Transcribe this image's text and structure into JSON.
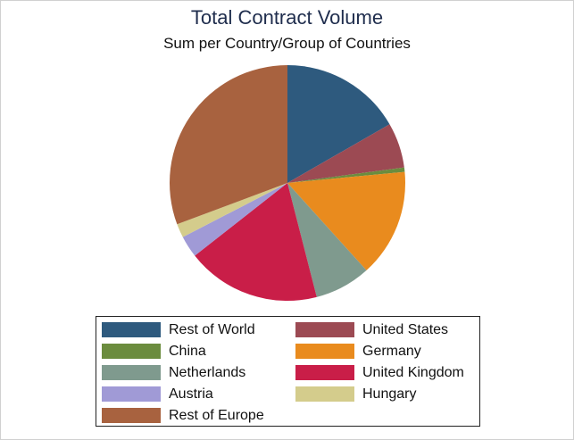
{
  "chart_data": {
    "type": "pie",
    "title": "Total Contract Volume",
    "subtitle": "Sum per Country/Group of Countries",
    "categories": [
      "Rest of World",
      "United States",
      "China",
      "Germany",
      "Netherlands",
      "United Kingdom",
      "Austria",
      "Hungary",
      "Rest of Europe"
    ],
    "values": [
      16.7,
      6.2,
      0.6,
      14.8,
      7.7,
      18.4,
      3.0,
      1.9,
      30.7
    ],
    "colors": [
      "#2e5a7e",
      "#9c4a53",
      "#6b8c3e",
      "#e98b1e",
      "#7f9a8e",
      "#c91e48",
      "#a09ad6",
      "#d4cc8c",
      "#a8623f"
    ],
    "start": "12 o'clock",
    "direction": "clockwise",
    "legend": {
      "placement": "bottom",
      "columns": 2,
      "items": [
        "Rest of World",
        "United States",
        "China",
        "Germany",
        "Netherlands",
        "United Kingdom",
        "Austria",
        "Hungary",
        "Rest of Europe"
      ]
    }
  }
}
